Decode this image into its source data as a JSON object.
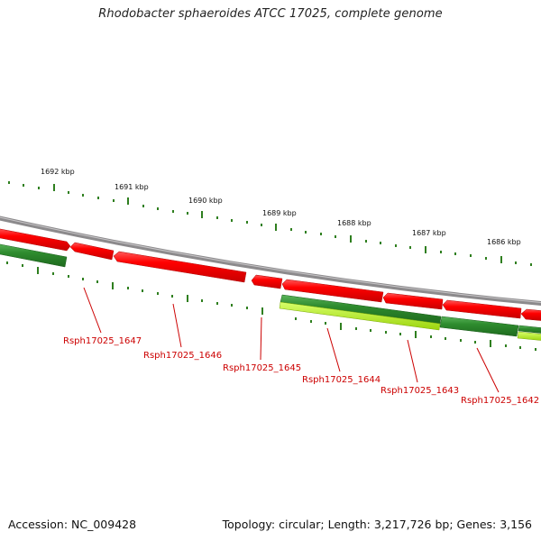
{
  "title": "Rhodobacter sphaeroides ATCC 17025, complete genome",
  "footer": {
    "accession": "Accession: NC_009428",
    "summary": "Topology: circular; Length: 3,217,726 bp; Genes: 3,156"
  },
  "ruler_labels": [
    "1692 kbp",
    "1691 kbp",
    "1690 kbp",
    "1689 kbp",
    "1688 kbp",
    "1687 kbp",
    "1686 kbp"
  ],
  "gene_labels": [
    "Rsph17025_1647",
    "Rsph17025_1646",
    "Rsph17025_1645",
    "Rsph17025_1644",
    "Rsph17025_1643",
    "Rsph17025_1642"
  ],
  "colors": {
    "backbone": "#8c8a8c",
    "forward_cds": "#ff0000",
    "reverse_cds": "#2e8b2e",
    "reverse_cds_alt": "#9bd40c",
    "ruler_ticks": "#2f7f1f",
    "gene_label": "#cc0000"
  }
}
